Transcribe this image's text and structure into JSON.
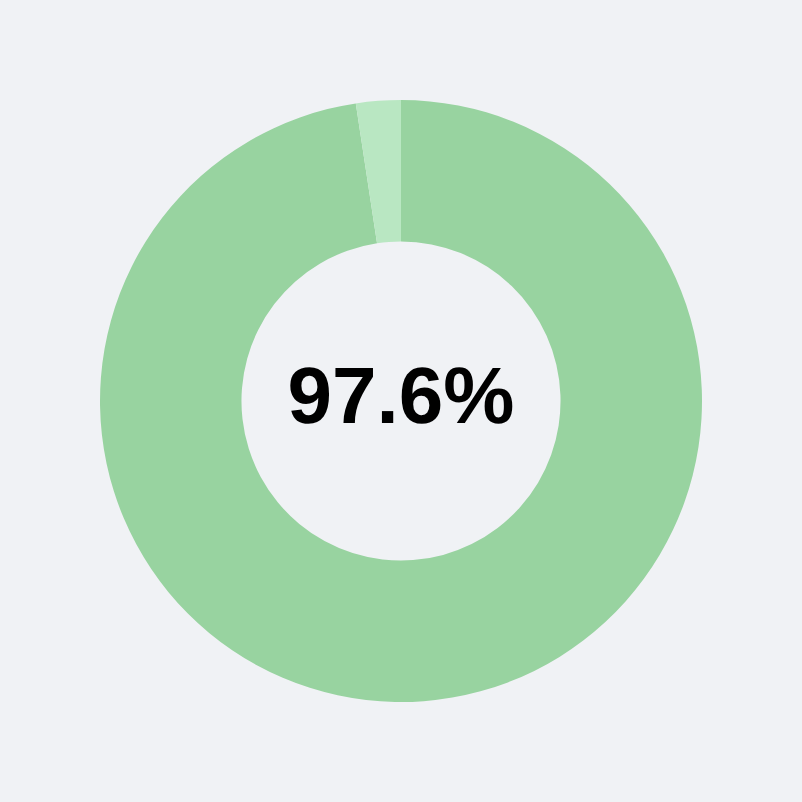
{
  "chart_data": {
    "type": "donut",
    "categories": [
      null,
      null
    ],
    "values": [
      97.6,
      2.4
    ],
    "colors": [
      "#98d3a0",
      "#b9e7c2"
    ],
    "annotations": [
      "97.6%"
    ],
    "legend": false
  }
}
